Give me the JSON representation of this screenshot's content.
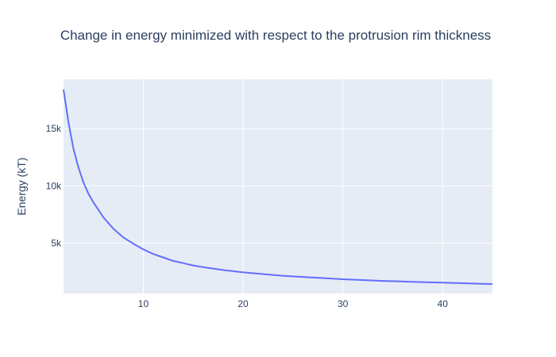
{
  "chart_data": {
    "type": "line",
    "title": "Change in energy minimized with respect to the protrusion rim thickness",
    "xlabel": "",
    "ylabel": "Energy (kT)",
    "xlim": [
      2,
      45
    ],
    "ylim": [
      600,
      19300
    ],
    "x_ticks": [
      10,
      20,
      30,
      40
    ],
    "x_tick_labels": [
      "10",
      "20",
      "30",
      "40"
    ],
    "y_ticks": [
      5000,
      10000,
      15000
    ],
    "y_tick_labels": [
      "5k",
      "10k",
      "15k"
    ],
    "grid": true,
    "legend": "none",
    "colors": {
      "line": "#636efa",
      "plot_bg": "#e5ecf6",
      "grid": "#ffffff",
      "text": "#2a3f5f"
    },
    "series": [
      {
        "x": [
          2,
          2.5,
          3,
          3.5,
          4,
          4.5,
          5,
          6,
          7,
          8,
          9,
          10,
          11,
          12,
          13,
          14,
          15,
          16,
          18,
          20,
          22,
          24,
          26,
          28,
          30,
          32,
          34,
          36,
          38,
          40,
          42,
          44,
          45
        ],
        "values": [
          18400,
          15500,
          13200,
          11600,
          10300,
          9300,
          8550,
          7250,
          6250,
          5500,
          4950,
          4450,
          4050,
          3750,
          3450,
          3250,
          3050,
          2900,
          2650,
          2450,
          2300,
          2150,
          2050,
          1950,
          1850,
          1780,
          1700,
          1650,
          1600,
          1550,
          1500,
          1450,
          1430
        ]
      }
    ]
  }
}
